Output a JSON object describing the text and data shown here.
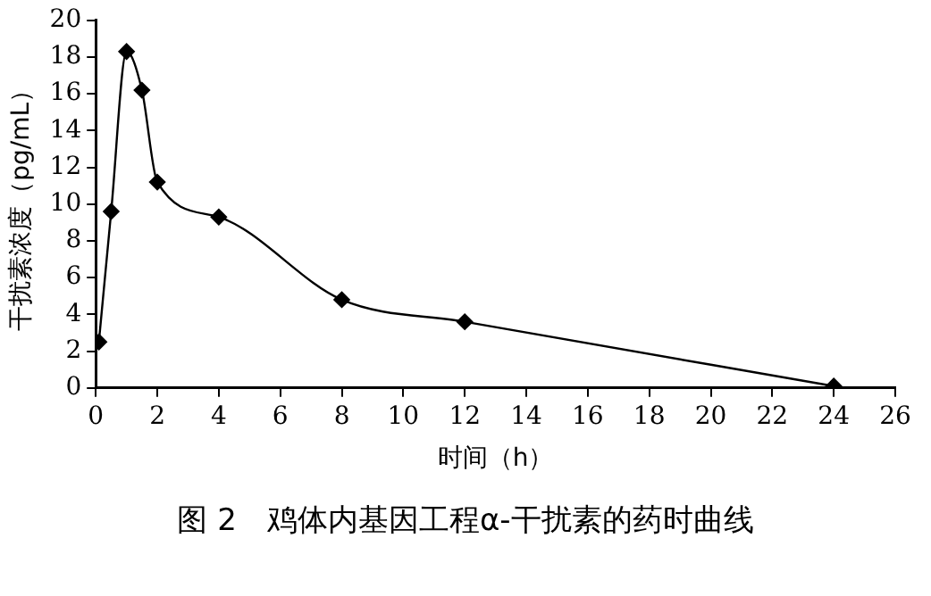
{
  "chart_data": {
    "type": "line",
    "xlabel": "时间（h）",
    "ylabel": "干扰素浓度（pg/mL）",
    "annotations": [
      "图 2　鸡体内基因工程α-干扰素的药时曲线"
    ],
    "x": [
      0.1,
      0.5,
      1,
      1.5,
      2,
      4,
      8,
      12,
      24
    ],
    "series": [
      {
        "color": "#000000",
        "values": [
          2.5,
          9.6,
          18.3,
          16.2,
          11.2,
          9.3,
          4.8,
          3.6,
          0.1
        ]
      }
    ],
    "xlim": [
      0,
      26
    ],
    "xticks": [
      0,
      2,
      4,
      6,
      8,
      10,
      12,
      14,
      16,
      18,
      20,
      22,
      24,
      26
    ],
    "ylim": [
      0,
      20
    ],
    "yticks": [
      0,
      2,
      4,
      6,
      8,
      10,
      12,
      14,
      16,
      18,
      20
    ],
    "grid": false,
    "legend": false,
    "marker": "diamond",
    "line_style": "solid"
  }
}
